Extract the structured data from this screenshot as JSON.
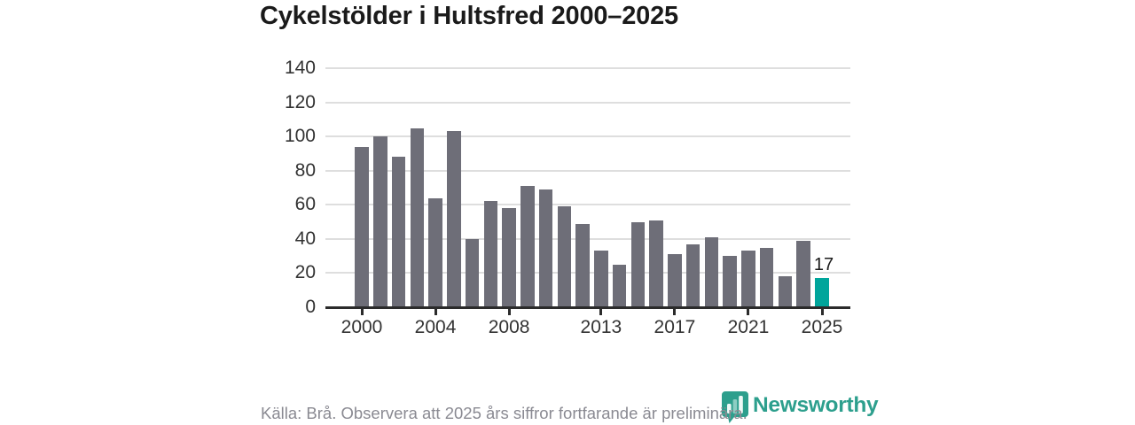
{
  "title": "Cykelstölder i Hultsfred 2000–2025",
  "footer": {
    "source_note": "Källa: Brå. Observera att 2025 års siffror fortfarande är preliminära.",
    "brand": "Newsworthy"
  },
  "colors": {
    "bar": "#6e6e78",
    "highlight": "#00a59b",
    "grid": "#dedede",
    "axis": "#2b2b2b",
    "title_text": "#1a1a1a",
    "axis_text": "#333333",
    "footer_text": "#8a8a92",
    "brand_teal": "#2d9f8d"
  },
  "chart_data": {
    "type": "bar",
    "title": "Cykelstölder i Hultsfred 2000–2025",
    "x": [
      2000,
      2001,
      2002,
      2003,
      2004,
      2005,
      2006,
      2007,
      2008,
      2009,
      2010,
      2011,
      2012,
      2013,
      2014,
      2015,
      2016,
      2017,
      2018,
      2019,
      2020,
      2021,
      2022,
      2023,
      2024,
      2025
    ],
    "values": [
      94,
      100,
      88,
      105,
      64,
      103,
      40,
      62,
      58,
      71,
      69,
      59,
      49,
      33,
      25,
      50,
      51,
      31,
      37,
      41,
      30,
      33,
      35,
      18,
      39,
      17
    ],
    "highlight_year": 2025,
    "data_labels": [
      {
        "year": 2025,
        "text": "17"
      }
    ],
    "xticks": [
      2000,
      2004,
      2008,
      2013,
      2017,
      2021,
      2025
    ],
    "yticks": [
      0,
      20,
      40,
      60,
      80,
      100,
      120,
      140
    ],
    "ylim": [
      0,
      140
    ],
    "grid": "horizontal",
    "legend": null,
    "xlabel": "",
    "ylabel": ""
  }
}
